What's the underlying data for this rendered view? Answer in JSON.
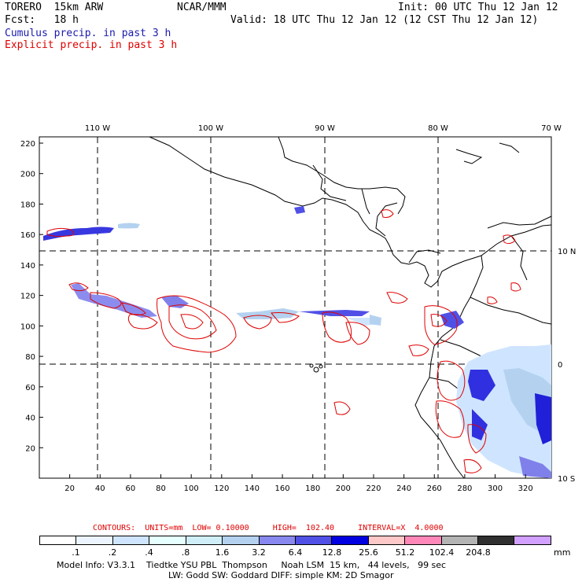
{
  "header": {
    "model": "TORERO  15km ARW",
    "org": "NCAR/MMM",
    "init": "Init: 00 UTC Thu 12 Jan 12",
    "fcst": "Fcst:   18 h",
    "valid": "Valid: 18 UTC Thu 12 Jan 12 (12 CST Thu 12 Jan 12)",
    "field1": "Cumulus precip. in past 3 h",
    "field2": "Explicit precip. in past 3 h"
  },
  "map": {
    "lon_labels": [
      "110 W",
      "100 W",
      "90 W",
      "80 W",
      "70 W"
    ],
    "lat_labels": [
      "10 N",
      "0",
      "10 S"
    ],
    "y_ticks": [
      "220",
      "200",
      "180",
      "160",
      "140",
      "120",
      "100",
      "80",
      "60",
      "40",
      "20"
    ],
    "x_ticks": [
      "20",
      "40",
      "60",
      "80",
      "100",
      "120",
      "140",
      "160",
      "180",
      "200",
      "220",
      "240",
      "260",
      "280",
      "300",
      "320"
    ]
  },
  "contours": {
    "label": "CONTOURS:  UNITS=mm  LOW= 0.10000     HIGH=  102.40     INTERVAL=X  4.0000"
  },
  "scale": {
    "colors": [
      "#ffffff",
      "#ecf4ff",
      "#cfe5ff",
      "#e6ffff",
      "#cfeef8",
      "#b4d2f0",
      "#8888ee",
      "#5050e6",
      "#0000e0",
      "#ffc8c8",
      "#ff88b8",
      "#b4b4b4",
      "#303030",
      "#d2a0ff"
    ],
    "labels": [
      ".1",
      ".2",
      ".4",
      ".8",
      "1.6",
      "3.2",
      "6.4",
      "12.8",
      "25.6",
      "51.2",
      "102.4",
      "204.8"
    ],
    "units": "mm"
  },
  "footer": {
    "line1": "Model Info: V3.3.1    Tiedtke YSU PBL  Thompson     Noah LSM  15 km,   44 levels,   99 sec",
    "line2": "LW: Godd SW: Goddard DIFF: simple KM: 2D Smagor"
  }
}
